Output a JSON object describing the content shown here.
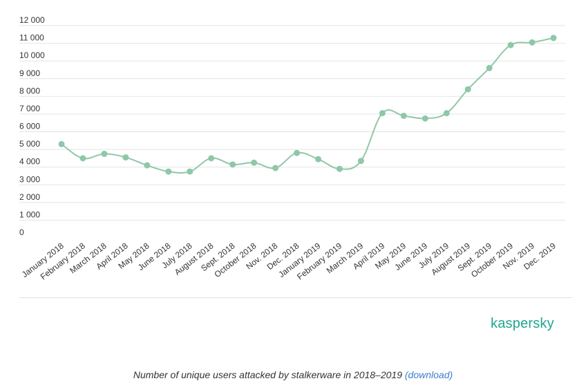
{
  "chart_data": {
    "type": "line",
    "categories": [
      "January 2018",
      "February 2018",
      "March 2018",
      "April 2018",
      "May 2018",
      "June 2018",
      "July 2018",
      "August 2018",
      "Sept. 2018",
      "October 2018",
      "Nov. 2018",
      "Dec. 2018",
      "January 2019",
      "February 2019",
      "March 2019",
      "April 2019",
      "May 2019",
      "June 2019",
      "July 2019",
      "August 2019",
      "Sept. 2019",
      "October 2019",
      "Nov. 2019",
      "Dec. 2019"
    ],
    "series": [
      {
        "values": [
          5300,
          4500,
          4750,
          4550,
          4100,
          3750,
          3750,
          4500,
          4150,
          4250,
          3950,
          4800,
          4450,
          3900,
          4350,
          7050,
          6900,
          6750,
          7050,
          8400,
          9600,
          10900,
          11050,
          11300
        ]
      }
    ],
    "yticks": [
      "0",
      "1 000",
      "2 000",
      "3 000",
      "4 000",
      "5 000",
      "6 000",
      "7 000",
      "8 000",
      "9 000",
      "10 000",
      "11 000",
      "12 000"
    ],
    "ylim": [
      0,
      12000
    ],
    "grid": true,
    "line_color": "#8fc7a8",
    "title": "",
    "xlabel": "",
    "ylabel": ""
  },
  "brand": "kaspersky",
  "caption": {
    "text": "Number of unique users attacked by stalkerware in 2018–2019",
    "link_label": "(download)"
  }
}
